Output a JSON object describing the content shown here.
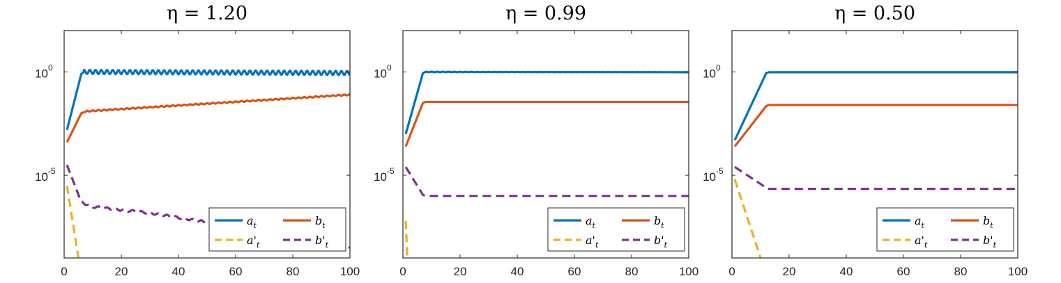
{
  "chart_data": [
    {
      "type": "line",
      "title": "η = 1.20",
      "xlim": [
        0,
        100
      ],
      "ylim_log10": [
        -9,
        2
      ],
      "yscale": "log",
      "xticks": [
        "0",
        "20",
        "40",
        "60",
        "80",
        "100"
      ],
      "yticks": [
        {
          "value": 1,
          "label": "10",
          "exp": "0"
        },
        {
          "value": 1e-05,
          "label": "10",
          "exp": "-5"
        }
      ],
      "legend": {
        "position": "bottom-right",
        "entries": [
          "a_t",
          "b_t",
          "a'_t",
          "b'_t"
        ]
      },
      "series": [
        {
          "name": "a_t",
          "color": "#0072BD",
          "dash": false,
          "points": [
            [
              1,
              0.00158
            ],
            [
              6,
              0.794
            ],
            [
              7,
              1.0
            ],
            [
              100,
              0.891
            ]
          ],
          "oscillation": {
            "start": 7,
            "amp_log10": 0.2,
            "period": 2
          }
        },
        {
          "name": "b_t",
          "color": "#D95319",
          "dash": false,
          "points": [
            [
              1,
              0.000398
            ],
            [
              6,
              0.01
            ],
            [
              8,
              0.0126
            ],
            [
              100,
              0.0794
            ]
          ],
          "oscillation": {
            "start": 8,
            "amp_log10": 0.05,
            "period": 2
          }
        },
        {
          "name": "a'_t",
          "color": "#EDB120",
          "dash": true,
          "points": [
            [
              1,
              3.16e-06
            ],
            [
              5,
              1e-09
            ]
          ]
        },
        {
          "name": "b'_t",
          "color": "#7E2F8E",
          "dash": true,
          "points": [
            [
              1,
              3.16e-05
            ],
            [
              6,
              5e-07
            ],
            [
              10,
              3e-07
            ],
            [
              30,
              1.5e-07
            ],
            [
              60,
              3.2e-08
            ],
            [
              100,
              3.2e-09
            ]
          ],
          "oscillation": {
            "start": 6,
            "amp_log10": 0.1,
            "period": 3
          }
        }
      ]
    },
    {
      "type": "line",
      "title": "η = 0.99",
      "xlim": [
        0,
        100
      ],
      "ylim_log10": [
        -9,
        2
      ],
      "yscale": "log",
      "xticks": [
        "0",
        "20",
        "40",
        "60",
        "80",
        "100"
      ],
      "yticks": [
        {
          "value": 1,
          "label": "10",
          "exp": "0"
        },
        {
          "value": 1e-05,
          "label": "10",
          "exp": "-5"
        }
      ],
      "legend": {
        "position": "bottom-right",
        "entries": [
          "a_t",
          "b_t",
          "a'_t",
          "b'_t"
        ]
      },
      "series": [
        {
          "name": "a_t",
          "color": "#0072BD",
          "dash": false,
          "points": [
            [
              1,
              0.001
            ],
            [
              7,
              0.89
            ],
            [
              8,
              1.0
            ],
            [
              100,
              0.97
            ]
          ],
          "oscillation": {
            "start": 8,
            "amp_log10": 0.03,
            "period": 2,
            "decay": 0.03
          }
        },
        {
          "name": "b_t",
          "color": "#D95319",
          "dash": false,
          "points": [
            [
              1,
              0.000251
            ],
            [
              7,
              0.0316
            ],
            [
              8,
              0.0355
            ],
            [
              100,
              0.0355
            ]
          ]
        },
        {
          "name": "a'_t",
          "color": "#EDB120",
          "dash": true,
          "points": [
            [
              1,
              6.3e-08
            ],
            [
              1.5,
              1e-09
            ]
          ]
        },
        {
          "name": "b'_t",
          "color": "#7E2F8E",
          "dash": true,
          "points": [
            [
              1,
              2.51e-05
            ],
            [
              7,
              1.12e-06
            ],
            [
              8,
              1e-06
            ],
            [
              100,
              1e-06
            ]
          ]
        }
      ]
    },
    {
      "type": "line",
      "title": "η = 0.50",
      "xlim": [
        0,
        100
      ],
      "ylim_log10": [
        -9,
        2
      ],
      "yscale": "log",
      "xticks": [
        "0",
        "20",
        "40",
        "60",
        "80",
        "100"
      ],
      "yticks": [
        {
          "value": 1,
          "label": "10",
          "exp": "0"
        },
        {
          "value": 1e-05,
          "label": "10",
          "exp": "-5"
        }
      ],
      "legend": {
        "position": "bottom-right",
        "entries": [
          "a_t",
          "b_t",
          "a'_t",
          "b'_t"
        ]
      },
      "series": [
        {
          "name": "a_t",
          "color": "#0072BD",
          "dash": false,
          "points": [
            [
              1,
              0.000501
            ],
            [
              12,
              0.89
            ],
            [
              13,
              0.97
            ],
            [
              100,
              0.97
            ]
          ]
        },
        {
          "name": "b_t",
          "color": "#D95319",
          "dash": false,
          "points": [
            [
              1,
              0.000251
            ],
            [
              12,
              0.0224
            ],
            [
              13,
              0.0251
            ],
            [
              100,
              0.0251
            ]
          ]
        },
        {
          "name": "a'_t",
          "color": "#EDB120",
          "dash": true,
          "points": [
            [
              1,
              6.3e-06
            ],
            [
              10,
              1e-09
            ]
          ]
        },
        {
          "name": "b'_t",
          "color": "#7E2F8E",
          "dash": true,
          "points": [
            [
              1,
              2.51e-05
            ],
            [
              12,
              2.5e-06
            ],
            [
              13,
              2.2e-06
            ],
            [
              100,
              2.2e-06
            ]
          ]
        }
      ]
    }
  ]
}
